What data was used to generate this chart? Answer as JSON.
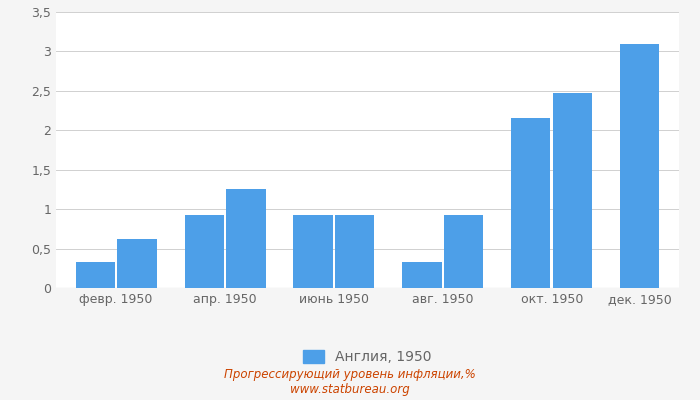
{
  "categories": [
    "февр. 1950",
    "апр. 1950",
    "июнь 1950",
    "авг. 1950",
    "окт. 1950",
    "дек. 1950"
  ],
  "values": [
    0.33,
    0.62,
    0.93,
    1.25,
    0.93,
    0.93,
    0.33,
    0.93,
    2.16,
    2.47,
    3.09
  ],
  "bar_color": "#4D9FE8",
  "ylim": [
    0,
    3.5
  ],
  "yticks": [
    0,
    0.5,
    1.0,
    1.5,
    2.0,
    2.5,
    3.0,
    3.5
  ],
  "ytick_labels": [
    "0",
    "0,5",
    "1",
    "1,5",
    "2",
    "2,5",
    "3",
    "3,5"
  ],
  "legend_label": "Англия, 1950",
  "footer_line1": "Прогрессирующий уровень инфляции,%",
  "footer_line2": "www.statbureau.org",
  "background_color": "#f5f5f5",
  "plot_bg_color": "#ffffff",
  "grid_color": "#d0d0d0",
  "tick_color": "#666666",
  "footer_color": "#cc4400"
}
